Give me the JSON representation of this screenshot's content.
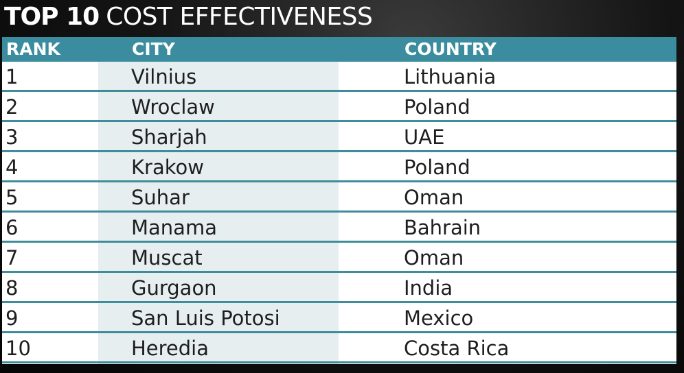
{
  "title": {
    "bold": "TOP 10",
    "rest": "COST EFFECTIVENESS"
  },
  "table": {
    "columns": [
      "RANK",
      "CITY",
      "COUNTRY"
    ],
    "rows": [
      [
        1,
        "Vilnius",
        "Lithuania"
      ],
      [
        2,
        "Wroclaw",
        "Poland"
      ],
      [
        3,
        "Sharjah",
        "UAE"
      ],
      [
        4,
        "Krakow",
        "Poland"
      ],
      [
        5,
        "Suhar",
        "Oman"
      ],
      [
        6,
        "Manama",
        "Bahrain"
      ],
      [
        7,
        "Muscat",
        "Oman"
      ],
      [
        8,
        "Gurgaon",
        "India"
      ],
      [
        9,
        "San Luis Potosi",
        "Mexico"
      ],
      [
        10,
        "Heredia",
        "Costa Rica"
      ]
    ]
  }
}
